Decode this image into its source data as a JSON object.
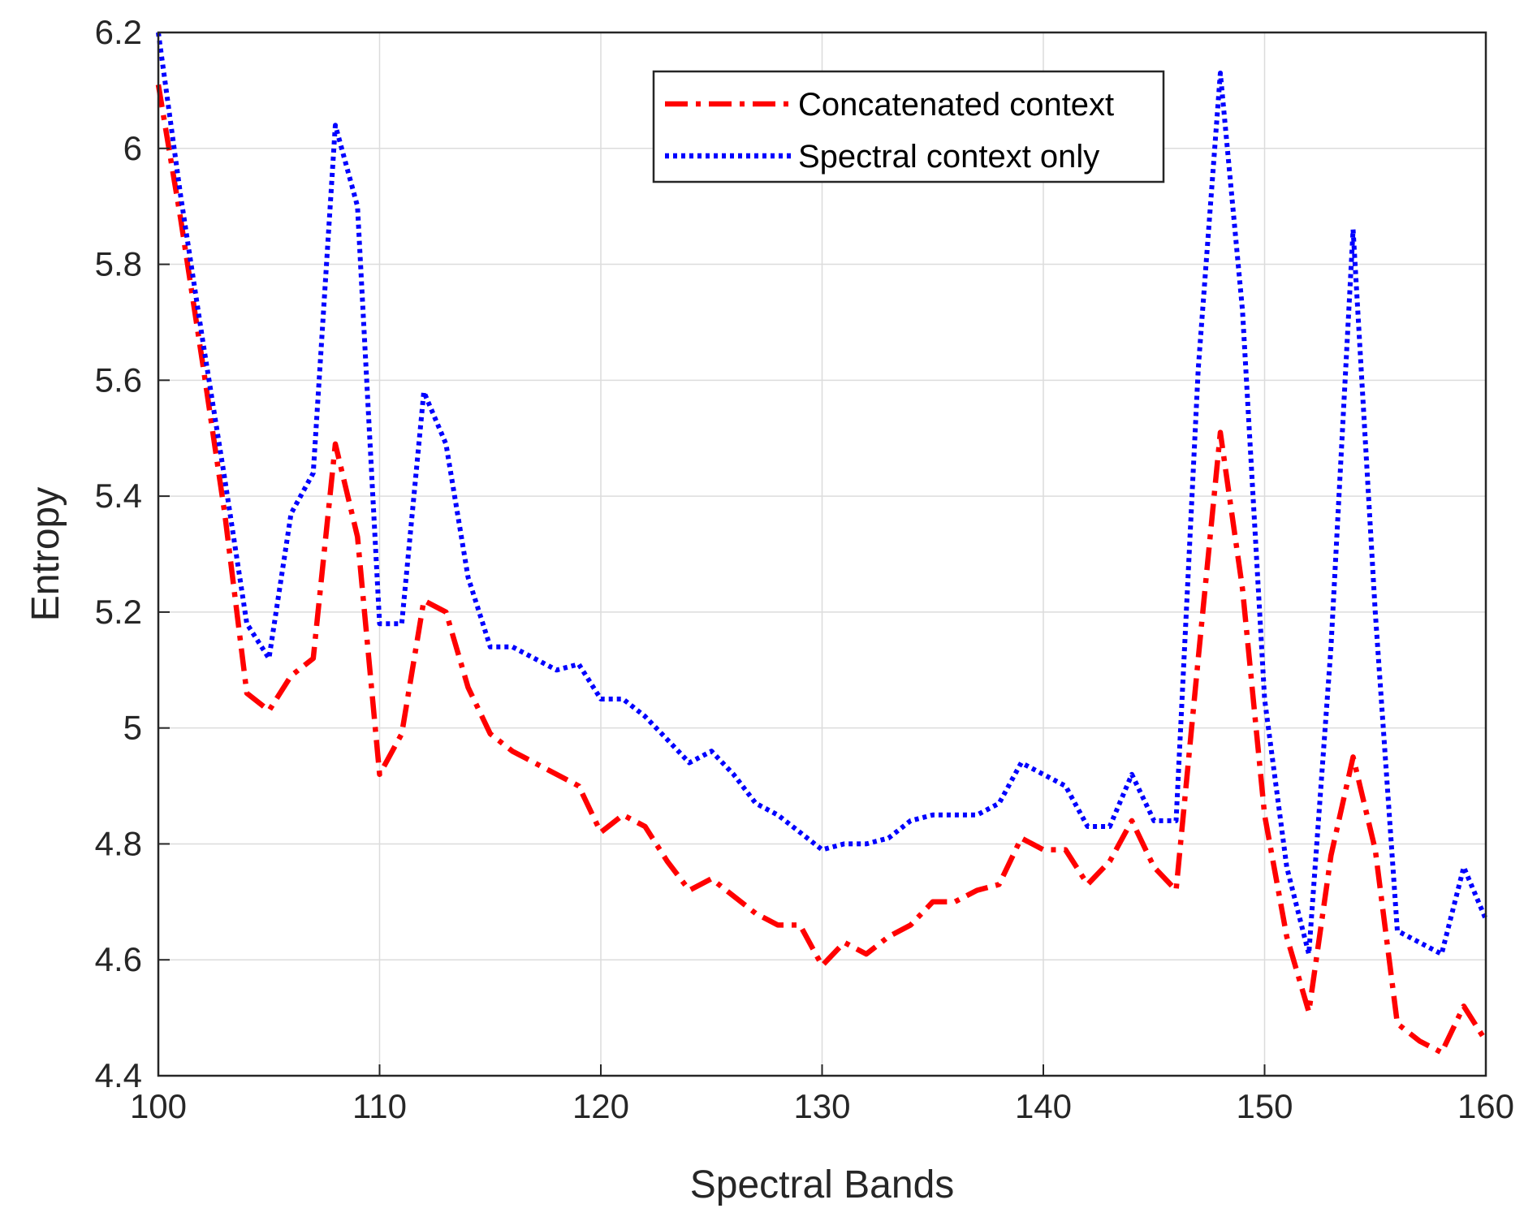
{
  "chart_data": {
    "type": "line",
    "title": "",
    "xlabel": "Spectral Bands",
    "ylabel": "Entropy",
    "xlim": [
      100,
      160
    ],
    "ylim": [
      4.4,
      6.2
    ],
    "xticks": [
      "100",
      "110",
      "120",
      "130",
      "140",
      "150",
      "160"
    ],
    "yticks": [
      "4.4",
      "4.6",
      "4.8",
      "5",
      "5.2",
      "5.4",
      "5.6",
      "5.8",
      "6",
      "6.2"
    ],
    "grid": true,
    "legend_position": "top-right",
    "x": [
      100,
      101,
      102,
      103,
      104,
      105,
      106,
      107,
      108,
      109,
      110,
      111,
      112,
      113,
      114,
      115,
      116,
      117,
      118,
      119,
      120,
      121,
      122,
      123,
      124,
      125,
      126,
      127,
      128,
      129,
      130,
      131,
      132,
      133,
      134,
      135,
      136,
      137,
      138,
      139,
      140,
      141,
      142,
      143,
      144,
      145,
      146,
      147,
      148,
      149,
      150,
      151,
      152,
      153,
      154,
      155,
      156,
      157,
      158,
      159,
      160
    ],
    "series": [
      {
        "name": "Concatenated context",
        "color": "#ff0000",
        "style": "dash-dot",
        "values": [
          6.11,
          5.88,
          5.63,
          5.37,
          5.06,
          5.03,
          5.09,
          5.12,
          5.49,
          5.33,
          4.92,
          4.99,
          5.22,
          5.2,
          5.07,
          4.99,
          4.96,
          4.94,
          4.92,
          4.9,
          4.82,
          4.85,
          4.83,
          4.77,
          4.72,
          4.74,
          4.71,
          4.68,
          4.66,
          4.66,
          4.59,
          4.63,
          4.61,
          4.64,
          4.66,
          4.7,
          4.7,
          4.72,
          4.73,
          4.81,
          4.79,
          4.79,
          4.73,
          4.77,
          4.84,
          4.76,
          4.72,
          5.12,
          5.51,
          5.24,
          4.85,
          4.64,
          4.51,
          4.78,
          4.95,
          4.79,
          4.49,
          4.46,
          4.44,
          4.52,
          4.46
        ]
      },
      {
        "name": "Spectral context only",
        "color": "#0000ff",
        "style": "dotted",
        "values": [
          6.2,
          5.92,
          5.67,
          5.43,
          5.18,
          5.12,
          5.37,
          5.44,
          6.04,
          5.9,
          5.18,
          5.18,
          5.58,
          5.49,
          5.26,
          5.14,
          5.14,
          5.12,
          5.1,
          5.11,
          5.05,
          5.05,
          5.02,
          4.98,
          4.94,
          4.96,
          4.92,
          4.87,
          4.85,
          4.82,
          4.79,
          4.8,
          4.8,
          4.81,
          4.84,
          4.85,
          4.85,
          4.85,
          4.87,
          4.94,
          4.92,
          4.9,
          4.83,
          4.83,
          4.92,
          4.84,
          4.84,
          5.62,
          6.13,
          5.72,
          5.05,
          4.76,
          4.61,
          5.14,
          5.86,
          5.2,
          4.65,
          4.63,
          4.61,
          4.76,
          4.67
        ]
      }
    ]
  }
}
